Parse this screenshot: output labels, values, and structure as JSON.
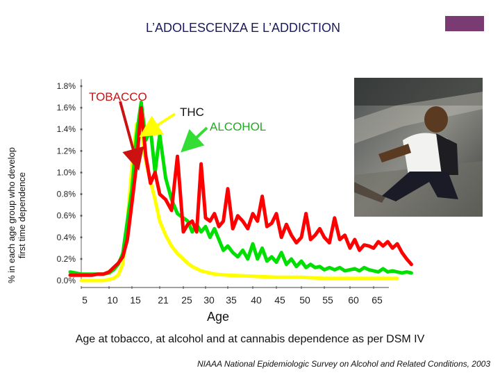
{
  "title": "L’ADOLESCENZA E L’ADDICTION",
  "ylabel_line1": "% in each age group who develop",
  "ylabel_line2": "first time dependence",
  "xlabel": "Age",
  "caption": "Age at tobacco, at alcohol and at cannabis dependence as per DSM IV",
  "source": "NIAAA National Epidemiologic Survey on Alcohol and Related Conditions, 2003",
  "colors": {
    "tobacco": "#ff0000",
    "alcohol": "#00e000",
    "thc": "#ffff00",
    "accent": "#7a3a72",
    "arrow_alcohol": "#33dd33"
  },
  "chart_data": {
    "type": "line",
    "yticks": [
      "1.8%",
      "1.6%",
      "1.4%",
      "1.2%",
      "1.0%",
      "0.8%",
      "0.6%",
      "0.4%",
      "0.2%",
      "0.0%"
    ],
    "xticks": [
      "5",
      "10",
      "15",
      "21",
      "25",
      "30",
      "35",
      "40",
      "45",
      "50",
      "55",
      "60",
      "65"
    ],
    "ylim": [
      0,
      1.8
    ],
    "annotations": {
      "tobacco": "TOBACCO",
      "thc": "THC",
      "alcohol": "ALCOHOL"
    },
    "series": [
      {
        "name": "THC",
        "color": "#ffff00",
        "x": [
          5,
          6,
          7,
          8,
          9,
          10,
          11,
          12,
          13,
          14,
          15,
          16,
          17,
          18,
          19,
          20,
          21,
          22,
          23,
          24,
          25,
          26,
          27,
          28,
          29,
          30,
          32,
          35,
          40,
          45,
          50,
          55,
          60,
          65,
          70
        ],
        "values": [
          0,
          0,
          0,
          0,
          0,
          0.01,
          0.02,
          0.05,
          0.15,
          0.55,
          1.05,
          1.45,
          1.38,
          1.1,
          0.92,
          0.75,
          0.55,
          0.42,
          0.32,
          0.25,
          0.2,
          0.16,
          0.13,
          0.11,
          0.09,
          0.08,
          0.06,
          0.05,
          0.04,
          0.03,
          0.03,
          0.02,
          0.02,
          0.02,
          0.02
        ]
      },
      {
        "name": "ALCOHOL",
        "color": "#00e000",
        "x": [
          3,
          4,
          5,
          6,
          7,
          8,
          9,
          10,
          11,
          12,
          13,
          14,
          15,
          16,
          17,
          18,
          19,
          20,
          21,
          22,
          23,
          24,
          25,
          26,
          27,
          28,
          29,
          30,
          31,
          32,
          33,
          34,
          35,
          36,
          37,
          38,
          39,
          40,
          41,
          42,
          43,
          44,
          45,
          46,
          47,
          48,
          49,
          50,
          51,
          52,
          53,
          54,
          55,
          56,
          57,
          58,
          59,
          60,
          61,
          62,
          63,
          64,
          65,
          66,
          67,
          68,
          69,
          70,
          71,
          72,
          73
        ],
        "values": [
          0.08,
          0.07,
          0.06,
          0.06,
          0.06,
          0.06,
          0.06,
          0.07,
          0.1,
          0.15,
          0.25,
          0.55,
          0.85,
          1.35,
          1.65,
          1.3,
          1.4,
          1.0,
          1.35,
          0.95,
          0.75,
          0.62,
          0.58,
          0.55,
          0.45,
          0.52,
          0.45,
          0.5,
          0.4,
          0.48,
          0.38,
          0.28,
          0.32,
          0.26,
          0.22,
          0.28,
          0.2,
          0.34,
          0.2,
          0.3,
          0.18,
          0.22,
          0.17,
          0.26,
          0.15,
          0.2,
          0.13,
          0.18,
          0.12,
          0.15,
          0.12,
          0.13,
          0.1,
          0.12,
          0.1,
          0.12,
          0.09,
          0.1,
          0.11,
          0.09,
          0.12,
          0.1,
          0.09,
          0.08,
          0.11,
          0.08,
          0.09,
          0.08,
          0.07,
          0.08,
          0.07
        ]
      },
      {
        "name": "TOBACCO",
        "color": "#ff0000",
        "x": [
          3,
          4,
          5,
          6,
          7,
          8,
          9,
          10,
          11,
          12,
          13,
          14,
          15,
          16,
          17,
          18,
          19,
          20,
          21,
          22,
          23,
          24,
          25,
          26,
          27,
          28,
          29,
          30,
          31,
          32,
          33,
          34,
          35,
          36,
          37,
          38,
          39,
          40,
          41,
          42,
          43,
          44,
          45,
          46,
          47,
          48,
          49,
          50,
          51,
          52,
          53,
          54,
          55,
          56,
          57,
          58,
          59,
          60,
          61,
          62,
          63,
          64,
          65,
          66,
          67,
          68,
          69,
          70,
          71,
          72,
          73
        ],
        "values": [
          0.05,
          0.05,
          0.05,
          0.05,
          0.05,
          0.06,
          0.06,
          0.08,
          0.12,
          0.16,
          0.22,
          0.38,
          0.72,
          1.08,
          1.6,
          1.15,
          0.9,
          1.0,
          0.8,
          0.75,
          0.65,
          1.15,
          0.45,
          0.52,
          0.55,
          0.45,
          1.08,
          0.58,
          0.55,
          0.62,
          0.5,
          0.55,
          0.85,
          0.48,
          0.6,
          0.55,
          0.48,
          0.62,
          0.55,
          0.78,
          0.5,
          0.53,
          0.62,
          0.4,
          0.52,
          0.42,
          0.35,
          0.4,
          0.62,
          0.38,
          0.42,
          0.48,
          0.4,
          0.35,
          0.58,
          0.38,
          0.42,
          0.3,
          0.38,
          0.28,
          0.33,
          0.32,
          0.3,
          0.36,
          0.32,
          0.36,
          0.3,
          0.34,
          0.26,
          0.2,
          0.15
        ]
      }
    ]
  }
}
